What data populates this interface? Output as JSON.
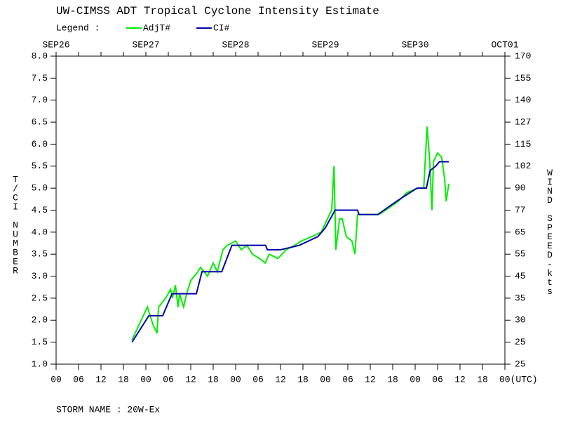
{
  "chart_data": {
    "type": "line",
    "title": "UW-CIMSS ADT Tropical Cyclone Intensity Estimate",
    "legend_label": "Legend :",
    "ylabel": "T/CI NUMBER",
    "y2label": "WIND SPEED-kts",
    "footer": "STORM NAME : 20W-Ex",
    "xlim": [
      0,
      120
    ],
    "xticks": [
      {
        "value": 0,
        "label": "00"
      },
      {
        "value": 6,
        "label": "06"
      },
      {
        "value": 12,
        "label": "12"
      },
      {
        "value": 18,
        "label": "18"
      },
      {
        "value": 24,
        "label": "00"
      },
      {
        "value": 30,
        "label": "06"
      },
      {
        "value": 36,
        "label": "12"
      },
      {
        "value": 42,
        "label": "18"
      },
      {
        "value": 48,
        "label": "00"
      },
      {
        "value": 54,
        "label": "06"
      },
      {
        "value": 60,
        "label": "12"
      },
      {
        "value": 66,
        "label": "18"
      },
      {
        "value": 72,
        "label": "00"
      },
      {
        "value": 78,
        "label": "06"
      },
      {
        "value": 84,
        "label": "12"
      },
      {
        "value": 90,
        "label": "18"
      },
      {
        "value": 96,
        "label": "00"
      },
      {
        "value": 102,
        "label": "06"
      },
      {
        "value": 108,
        "label": "12"
      },
      {
        "value": 114,
        "label": "18"
      },
      {
        "value": 120,
        "label": "00(UTC)"
      }
    ],
    "top_ticks": [
      {
        "value": 0,
        "label": "SEP26"
      },
      {
        "value": 24,
        "label": "SEP27"
      },
      {
        "value": 48,
        "label": "SEP28"
      },
      {
        "value": 72,
        "label": "SEP29"
      },
      {
        "value": 96,
        "label": "SEP30"
      },
      {
        "value": 120,
        "label": "OCT01"
      }
    ],
    "ylim": [
      1,
      8
    ],
    "yticks": [
      {
        "value": 1,
        "label": "1.0"
      },
      1.5,
      {
        "value": 2,
        "label": "2.0"
      },
      2.5,
      {
        "value": 3,
        "label": "3.0"
      },
      3.5,
      {
        "value": 4,
        "label": "4.0"
      },
      4.5,
      {
        "value": 5,
        "label": "5.0"
      },
      5.5,
      {
        "value": 6,
        "label": "6.0"
      },
      6.5,
      {
        "value": 7,
        "label": "7.0"
      },
      7.5,
      {
        "value": 8,
        "label": "8.0"
      }
    ],
    "y2_labels": [
      25,
      25,
      30,
      35,
      45,
      55,
      65,
      77,
      90,
      102,
      115,
      127,
      140,
      155,
      170
    ],
    "series": [
      {
        "name": "AdjT#",
        "color": "#00ee00",
        "x": [
          20.3,
          24.4,
          25.9,
          27.0,
          27.4,
          29.3,
          30.6,
          31.1,
          31.9,
          32.6,
          33.0,
          34.1,
          34.9,
          36.0,
          37.9,
          38.6,
          40.5,
          42.0,
          43.1,
          44.6,
          45.8,
          48.0,
          49.5,
          51.0,
          52.5,
          54.4,
          55.9,
          57.0,
          59.3,
          61.5,
          63.8,
          65.6,
          68.4,
          70.9,
          73.1,
          73.7,
          74.3,
          74.8,
          75.8,
          76.5,
          77.6,
          79.1,
          79.9,
          80.6,
          86.3,
          88.1,
          91.5,
          93.8,
          96.8,
          98.3,
          99.2,
          99.9,
          100.5,
          100.9,
          102.0,
          103.1,
          103.9,
          104.3,
          105.0
        ],
        "values": [
          1.55,
          2.3,
          1.9,
          1.7,
          2.3,
          2.5,
          2.7,
          2.5,
          2.8,
          2.3,
          2.6,
          2.3,
          2.6,
          2.9,
          3.1,
          3.2,
          3.0,
          3.3,
          3.1,
          3.6,
          3.7,
          3.8,
          3.6,
          3.7,
          3.5,
          3.4,
          3.3,
          3.5,
          3.4,
          3.6,
          3.7,
          3.8,
          3.9,
          4.0,
          4.4,
          4.5,
          5.5,
          3.6,
          4.3,
          4.3,
          3.9,
          3.8,
          3.5,
          4.4,
          4.4,
          4.5,
          4.7,
          4.9,
          5.0,
          5.0,
          6.4,
          5.6,
          4.5,
          5.6,
          5.8,
          5.7,
          5.2,
          4.7,
          5.1
        ]
      },
      {
        "name": "CI#",
        "color": "#0000aa",
        "x": [
          20.3,
          24.8,
          28.5,
          31.0,
          37.5,
          39.0,
          44.3,
          47.0,
          56.0,
          56.5,
          60.0,
          65.0,
          70.0,
          72.0,
          74.6,
          80.6,
          81.0,
          86.0,
          91.0,
          96.5,
          99.0,
          100.0,
          101.5,
          102.5,
          105.0
        ],
        "values": [
          1.5,
          2.1,
          2.1,
          2.6,
          2.6,
          3.1,
          3.1,
          3.7,
          3.7,
          3.6,
          3.6,
          3.7,
          3.9,
          4.1,
          4.5,
          4.5,
          4.4,
          4.4,
          4.7,
          5.0,
          5.0,
          5.4,
          5.5,
          5.6,
          5.6
        ]
      }
    ]
  }
}
